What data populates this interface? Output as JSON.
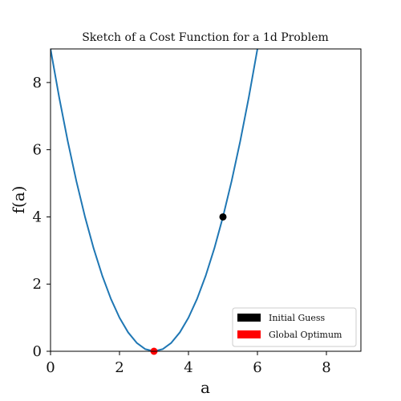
{
  "chart_data": {
    "type": "line",
    "title": "Sketch of a Cost Function for a 1d Problem",
    "xlabel": "a",
    "ylabel": "f(a)",
    "xlim": [
      0,
      9
    ],
    "ylim": [
      0,
      9
    ],
    "xticks": [
      0,
      2,
      4,
      6,
      8
    ],
    "yticks": [
      0,
      2,
      4,
      6,
      8
    ],
    "grid": false,
    "curve": {
      "function": "(a - 3)^2",
      "color": "#1f77b4",
      "x": [
        0,
        0.25,
        0.5,
        0.75,
        1,
        1.25,
        1.5,
        1.75,
        2,
        2.25,
        2.5,
        2.75,
        3,
        3.25,
        3.5,
        3.75,
        4,
        4.25,
        4.5,
        4.75,
        5,
        5.25,
        5.5,
        5.75,
        6
      ],
      "y": [
        9,
        7.5625,
        6.25,
        5.0625,
        4,
        3.0625,
        2.25,
        1.5625,
        1,
        0.5625,
        0.25,
        0.0625,
        0,
        0.0625,
        0.25,
        0.5625,
        1,
        1.5625,
        2.25,
        3.0625,
        4,
        5.0625,
        6.25,
        7.5625,
        9
      ]
    },
    "points": [
      {
        "name": "Initial Guess",
        "x": 5,
        "y": 4,
        "color": "#000000"
      },
      {
        "name": "Global Optimum",
        "x": 3,
        "y": 0,
        "color": "#ff0000"
      }
    ],
    "legend": {
      "placement": "bottom-right",
      "entries": [
        {
          "label": "Initial Guess",
          "color": "#000000"
        },
        {
          "label": "Global Optimum",
          "color": "#ff0000"
        }
      ]
    }
  }
}
